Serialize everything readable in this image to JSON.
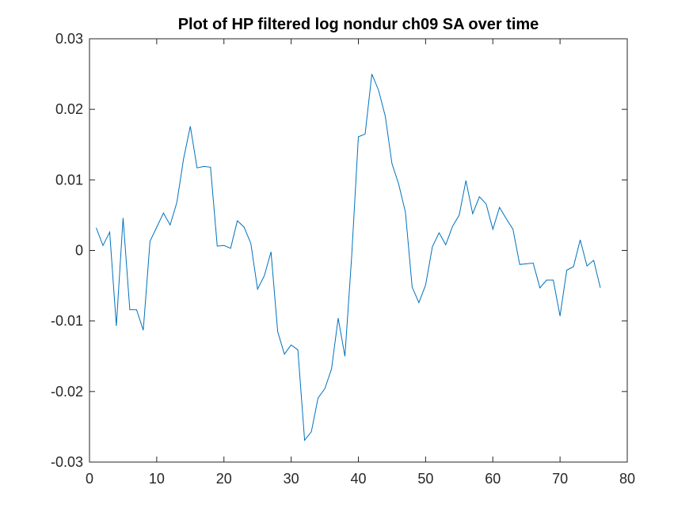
{
  "chart_data": {
    "type": "line",
    "title": "Plot of HP filtered log nondur ch09 SA over time",
    "xlabel": "",
    "ylabel": "",
    "xlim": [
      0,
      80
    ],
    "ylim": [
      -0.03,
      0.03
    ],
    "x_ticks": [
      0,
      10,
      20,
      30,
      40,
      50,
      60,
      70,
      80
    ],
    "x_tick_labels": [
      "0",
      "10",
      "20",
      "30",
      "40",
      "50",
      "60",
      "70",
      "80"
    ],
    "y_ticks": [
      -0.03,
      -0.02,
      -0.01,
      0,
      0.01,
      0.02,
      0.03
    ],
    "y_tick_labels": [
      "-0.03",
      "-0.02",
      "-0.01",
      "0",
      "0.01",
      "0.02",
      "0.03"
    ],
    "grid": false,
    "legend": "none",
    "line_color": "#0072BD",
    "series": [
      {
        "x": [
          1,
          2,
          3,
          4,
          5,
          6,
          7,
          8,
          9,
          10,
          11,
          12,
          13,
          14,
          15,
          16,
          17,
          18,
          19,
          20,
          21,
          22,
          23,
          24,
          25,
          26,
          27,
          28,
          29,
          30,
          31,
          32,
          33,
          34,
          35,
          36,
          37,
          38,
          39,
          40,
          41,
          42,
          43,
          44,
          45,
          46,
          47,
          48,
          49,
          50,
          51,
          52,
          53,
          54,
          55,
          56,
          57,
          58,
          59,
          60,
          61,
          62,
          63,
          64,
          65,
          66,
          67,
          68,
          69,
          70,
          71,
          72,
          73,
          74,
          75,
          76
        ],
        "values": [
          0.0032,
          0.0007,
          0.0026,
          -0.0107,
          0.0046,
          -0.0084,
          -0.0084,
          -0.0113,
          0.0013,
          0.0033,
          0.0053,
          0.0036,
          0.0068,
          0.013,
          0.0176,
          0.0117,
          0.0119,
          0.0118,
          0.0006,
          0.0007,
          0.0003,
          0.0042,
          0.0033,
          0.001,
          -0.0055,
          -0.0036,
          -0.0002,
          -0.0115,
          -0.0147,
          -0.0134,
          -0.0141,
          -0.0269,
          -0.0257,
          -0.0209,
          -0.0196,
          -0.0168,
          -0.0096,
          -0.015,
          -0.0009,
          0.0161,
          0.0165,
          0.025,
          0.0227,
          0.019,
          0.0123,
          0.0094,
          0.0054,
          -0.0052,
          -0.0074,
          -0.0049,
          0.0005,
          0.0025,
          0.0008,
          0.0034,
          0.005,
          0.0099,
          0.0052,
          0.0076,
          0.0066,
          0.003,
          0.0061,
          0.0045,
          0.003,
          -0.002,
          -0.0019,
          -0.0018,
          -0.0053,
          -0.0042,
          -0.0042,
          -0.0093,
          -0.0028,
          -0.0023,
          0.0015,
          -0.0022,
          -0.0014,
          -0.0053
        ]
      }
    ]
  }
}
